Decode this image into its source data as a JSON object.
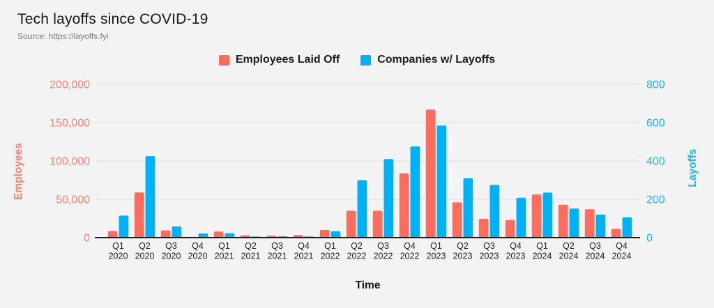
{
  "header": {
    "title": "Tech layoffs since COVID-19",
    "source": "Source: https://layoffs.fyi"
  },
  "chart_data": {
    "type": "bar",
    "title": "Tech layoffs since COVID-19",
    "subtitle": "Source: https://layoffs.fyi",
    "xlabel": "Time",
    "grid": true,
    "legend_position": "top",
    "categories": [
      "Q1 2020",
      "Q2 2020",
      "Q3 2020",
      "Q4 2020",
      "Q1 2021",
      "Q2 2021",
      "Q3 2021",
      "Q4 2021",
      "Q1 2022",
      "Q2 2022",
      "Q3 2022",
      "Q4 2022",
      "Q1 2023",
      "Q2 2023",
      "Q3 2023",
      "Q4 2023",
      "Q1 2024",
      "Q2 2024",
      "Q3 2024",
      "Q4 2024"
    ],
    "series": [
      {
        "name": "Employees Laid Off",
        "axis": "left",
        "color": "#fd6c5c",
        "values": [
          8500,
          59000,
          9500,
          1000,
          8000,
          3000,
          2500,
          3400,
          10000,
          35000,
          35000,
          84000,
          167000,
          46000,
          24500,
          23000,
          56500,
          43000,
          37000,
          11500
        ]
      },
      {
        "name": "Companies w/ Layoffs",
        "axis": "right",
        "color": "#00b1f6",
        "values": [
          115,
          425,
          58,
          22,
          23,
          6,
          7,
          6,
          33,
          300,
          410,
          476,
          585,
          310,
          275,
          208,
          235,
          152,
          120,
          106
        ]
      }
    ],
    "left_axis": {
      "label": "Employees",
      "color": "#fb8172",
      "ticks": [
        0,
        50000,
        100000,
        150000,
        200000
      ],
      "ylim": [
        0,
        200000
      ]
    },
    "right_axis": {
      "label": "Layoffs",
      "color": "#1cb5f7",
      "ticks": [
        0,
        200,
        400,
        600,
        800
      ],
      "ylim": [
        0,
        800
      ]
    },
    "colors": {
      "gridline": "#dcdcdc",
      "baseline": "#1f1f1f",
      "tick_text_x": "#1c1c1c",
      "xlabel_color": "#111111"
    }
  }
}
